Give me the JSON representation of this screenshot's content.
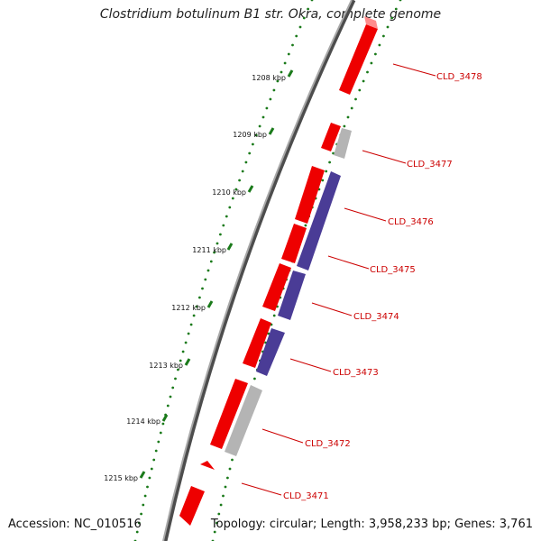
{
  "title": "Clostridium botulinum B1 str. Okra, complete genome",
  "accession": "Accession: NC_010516",
  "topology": "Topology: circular; Length: 3,958,233 bp; Genes: 3,761",
  "colors": {
    "backbone": "#808080",
    "dots": "#1a7a1a",
    "gene_forward": "#ff0000",
    "gene_reverse_blue": "#4a3c96",
    "gene_reverse_gray": "#b4b4b4",
    "label": "#cc0000"
  },
  "kbp_ticks": [
    "1208 kbp",
    "1209 kbp",
    "1210 kbp",
    "1211 kbp",
    "1212 kbp",
    "1213 kbp",
    "1214 kbp",
    "1215 kbp"
  ],
  "gene_labels": [
    "CLD_3478",
    "CLD_3477",
    "CLD_3476",
    "CLD_3475",
    "CLD_3474",
    "CLD_3473",
    "CLD_3472",
    "CLD_3471"
  ]
}
